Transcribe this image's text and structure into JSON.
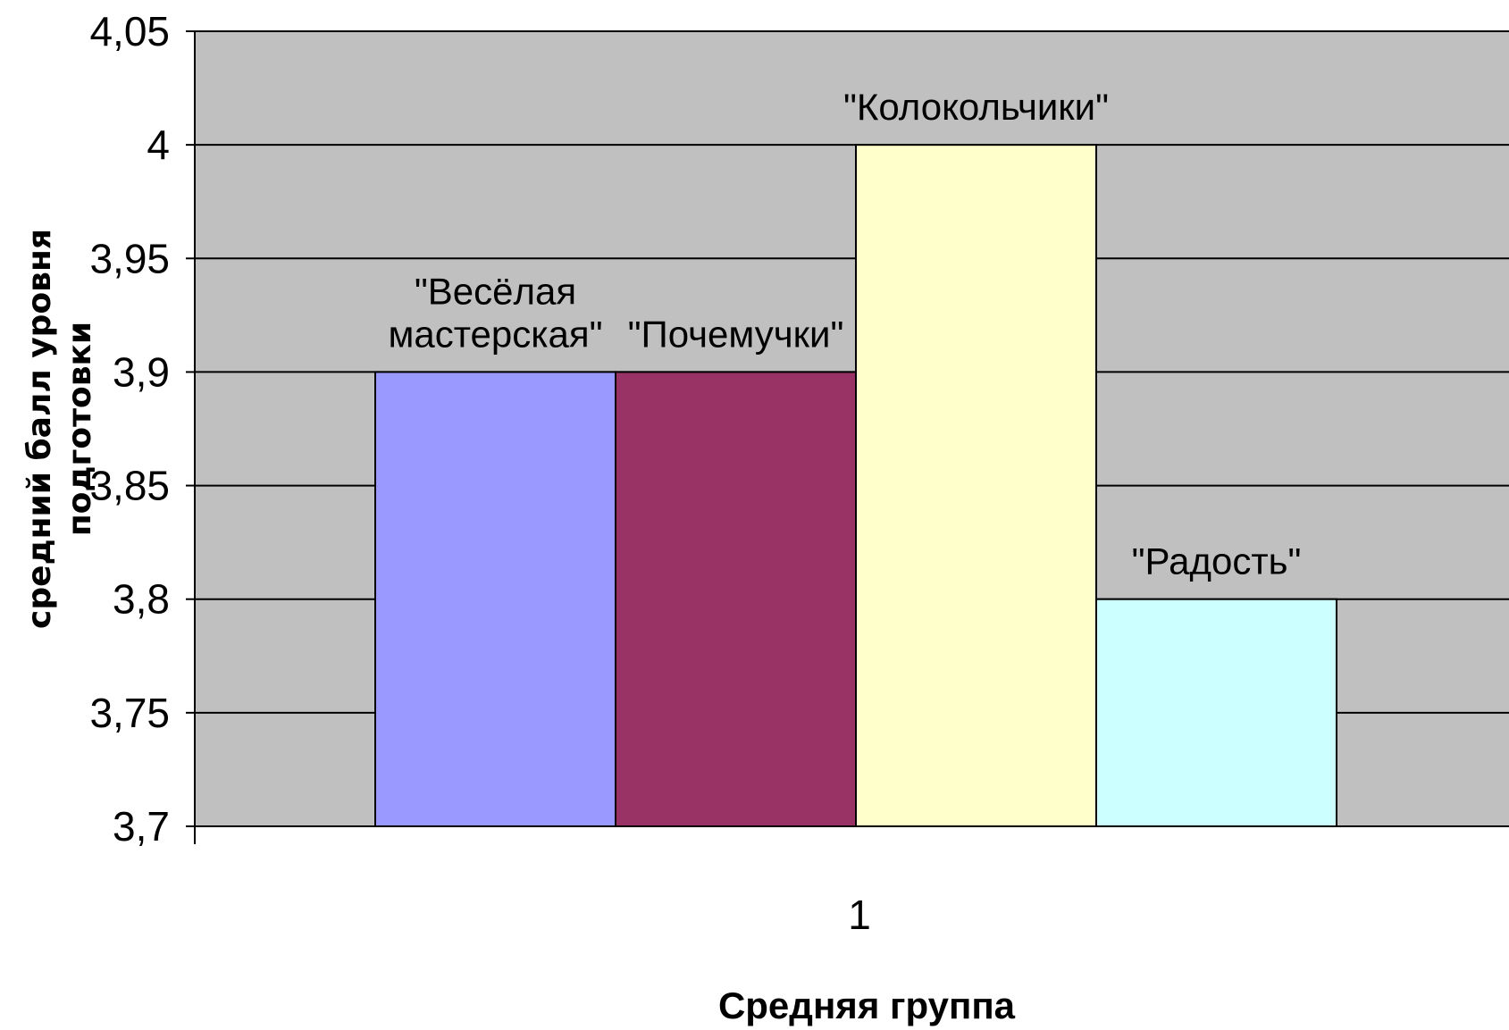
{
  "chart_data": {
    "type": "bar",
    "categories": [
      "1"
    ],
    "series": [
      {
        "name": "\"Весёлая мастерская\"",
        "values": [
          3.9
        ],
        "color": "#9999ff",
        "label_lines": [
          "\"Весёлая",
          "мастерская\""
        ]
      },
      {
        "name": "\"Почемучки\"",
        "values": [
          3.9
        ],
        "color": "#993366",
        "label_lines": [
          "\"Почемучки\""
        ]
      },
      {
        "name": "\"Колокольчики\"",
        "values": [
          4.0
        ],
        "color": "#ffffcc",
        "label_lines": [
          "\"Колокольчики\""
        ]
      },
      {
        "name": "\"Радость\"",
        "values": [
          3.8
        ],
        "color": "#ccffff",
        "label_lines": [
          "\"Радость\""
        ]
      }
    ],
    "title": "",
    "xlabel": "Средняя группа",
    "ylabel_lines": [
      "средний балл уровня",
      "подготовки"
    ],
    "ylim": [
      3.7,
      4.05
    ],
    "yticks": [
      3.7,
      3.75,
      3.8,
      3.85,
      3.9,
      3.95,
      4.0,
      4.05
    ],
    "ytick_labels": [
      "3,7",
      "3,75",
      "3,8",
      "3,85",
      "3,9",
      "3,95",
      "4",
      "4,05"
    ],
    "grid": true,
    "plot_background": "#c0c0c0",
    "legend": "none"
  }
}
